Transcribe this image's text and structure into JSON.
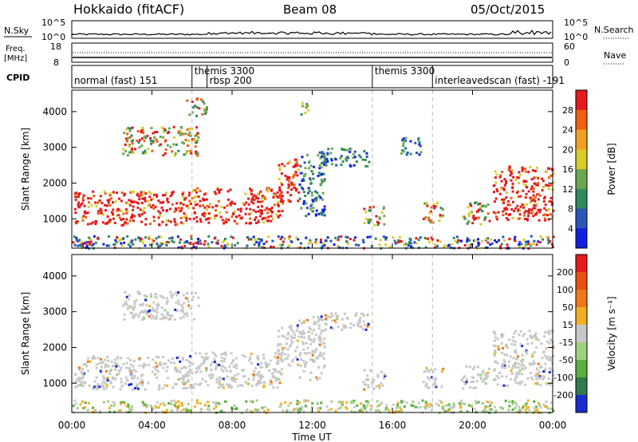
{
  "header": {
    "station": "Hokkaido (fitACF)",
    "beam": "Beam 08",
    "date": "05/Oct/2015"
  },
  "noise_panel": {
    "left_label": "N.Sky",
    "right_label": "N.Search",
    "left_ticks": [
      "10^5",
      "10^0"
    ],
    "right_ticks": [
      "10^5",
      "10^0"
    ]
  },
  "freq_panel": {
    "left_label_1": "Freq.",
    "left_label_2": "[MHz]",
    "right_label": "Nave",
    "left_ticks": [
      "18",
      "8"
    ],
    "right_ticks": [
      "60",
      "0"
    ]
  },
  "cpid": {
    "label": "CPID",
    "segments": [
      {
        "text": "normal (fast) 151",
        "start_hour": 0.0,
        "row": 1
      },
      {
        "text": "themis 3300",
        "start_hour": 6.0,
        "row": 0
      },
      {
        "text": "rbsp 200",
        "start_hour": 6.75,
        "row": 1
      },
      {
        "text": "themis 3300",
        "start_hour": 15.0,
        "row": 0
      },
      {
        "text": "interleavedscan (fast) -191",
        "start_hour": 18.0,
        "row": 1
      }
    ],
    "divider_hours": [
      6.0,
      6.75,
      15.0,
      18.0
    ]
  },
  "chart_data": [
    {
      "type": "heatmap",
      "panel": "power",
      "ylabel": "Slant Range [km]",
      "yticks": [
        "4000",
        "3000",
        "2000",
        "1000"
      ],
      "ylim": [
        180,
        4600
      ],
      "xlim": [
        0,
        24
      ],
      "colorbar": {
        "title": "Power [dB]",
        "ticks": [
          "28",
          "24",
          "20",
          "16",
          "12",
          "8",
          "4"
        ],
        "colors": [
          "#1020e0",
          "#2a56b8",
          "#2f8a5c",
          "#6aa84f",
          "#d8cc26",
          "#f2a020",
          "#f06010",
          "#e41a1c"
        ]
      },
      "regions": [
        {
          "t0": 0.1,
          "t1": 6.0,
          "r0": 850,
          "r1": 1800,
          "level": "strong"
        },
        {
          "t0": 6.0,
          "t1": 10.5,
          "r0": 900,
          "r1": 1900,
          "level": "strong"
        },
        {
          "t0": 10.2,
          "t1": 11.3,
          "r0": 1500,
          "r1": 2700,
          "level": "strong"
        },
        {
          "t0": 2.5,
          "t1": 6.3,
          "r0": 2800,
          "r1": 3600,
          "level": "medium"
        },
        {
          "t0": 5.7,
          "t1": 6.7,
          "r0": 3900,
          "r1": 4400,
          "level": "medium"
        },
        {
          "t0": 11.3,
          "t1": 12.6,
          "r0": 1100,
          "r1": 2900,
          "level": "weak"
        },
        {
          "t0": 11.4,
          "t1": 11.8,
          "r0": 3900,
          "r1": 4400,
          "level": "medium"
        },
        {
          "t0": 12.5,
          "t1": 14.8,
          "r0": 2500,
          "r1": 3000,
          "level": "weak"
        },
        {
          "t0": 14.5,
          "t1": 15.6,
          "r0": 850,
          "r1": 1400,
          "level": "medium"
        },
        {
          "t0": 16.3,
          "t1": 17.4,
          "r0": 2800,
          "r1": 3300,
          "level": "weak"
        },
        {
          "t0": 17.5,
          "t1": 18.5,
          "r0": 900,
          "r1": 1500,
          "level": "medium"
        },
        {
          "t0": 19.4,
          "t1": 20.8,
          "r0": 850,
          "r1": 1500,
          "level": "medium"
        },
        {
          "t0": 21.0,
          "t1": 24.0,
          "r0": 950,
          "r1": 2500,
          "level": "strong"
        },
        {
          "t0": 0.0,
          "t1": 24.0,
          "r0": 200,
          "r1": 550,
          "level": "mixed"
        }
      ]
    },
    {
      "type": "heatmap",
      "panel": "velocity",
      "ylabel": "Slant Range [km]",
      "yticks": [
        "4000",
        "3000",
        "2000",
        "1000"
      ],
      "ylim": [
        180,
        4600
      ],
      "xlim": [
        0,
        24
      ],
      "xticks": [
        "00:00",
        "04:00",
        "08:00",
        "12:00",
        "16:00",
        "20:00",
        "00:00"
      ],
      "xlabel": "Time UT",
      "colorbar": {
        "title": "Velocity [m s⁻¹]",
        "ticks": [
          "200",
          "100",
          "50",
          "15",
          "-15",
          "-50",
          "-100",
          "-200"
        ],
        "colors": [
          "#1a2bd0",
          "#2f7a4f",
          "#58b040",
          "#9fd080",
          "#c8c8c8",
          "#f2b020",
          "#f07818",
          "#e85010",
          "#e41a1c"
        ]
      },
      "regions": [
        {
          "t0": 0.1,
          "t1": 6.0,
          "r0": 850,
          "r1": 1800,
          "level": "ground"
        },
        {
          "t0": 6.0,
          "t1": 10.5,
          "r0": 900,
          "r1": 1900,
          "level": "ground"
        },
        {
          "t0": 10.2,
          "t1": 11.3,
          "r0": 1500,
          "r1": 2700,
          "level": "ground"
        },
        {
          "t0": 2.5,
          "t1": 6.3,
          "r0": 2800,
          "r1": 3600,
          "level": "ground"
        },
        {
          "t0": 11.3,
          "t1": 12.6,
          "r0": 1100,
          "r1": 2900,
          "level": "ground"
        },
        {
          "t0": 12.5,
          "t1": 14.8,
          "r0": 2500,
          "r1": 3000,
          "level": "ground"
        },
        {
          "t0": 14.5,
          "t1": 15.6,
          "r0": 850,
          "r1": 1400,
          "level": "ground"
        },
        {
          "t0": 17.5,
          "t1": 18.5,
          "r0": 900,
          "r1": 1500,
          "level": "ground"
        },
        {
          "t0": 19.4,
          "t1": 20.8,
          "r0": 850,
          "r1": 1500,
          "level": "ground"
        },
        {
          "t0": 21.0,
          "t1": 24.0,
          "r0": 950,
          "r1": 2500,
          "level": "ground"
        },
        {
          "t0": 0.0,
          "t1": 24.0,
          "r0": 200,
          "r1": 550,
          "level": "green"
        }
      ]
    }
  ],
  "dashed_hours": [
    6.0,
    15.0,
    18.0
  ]
}
